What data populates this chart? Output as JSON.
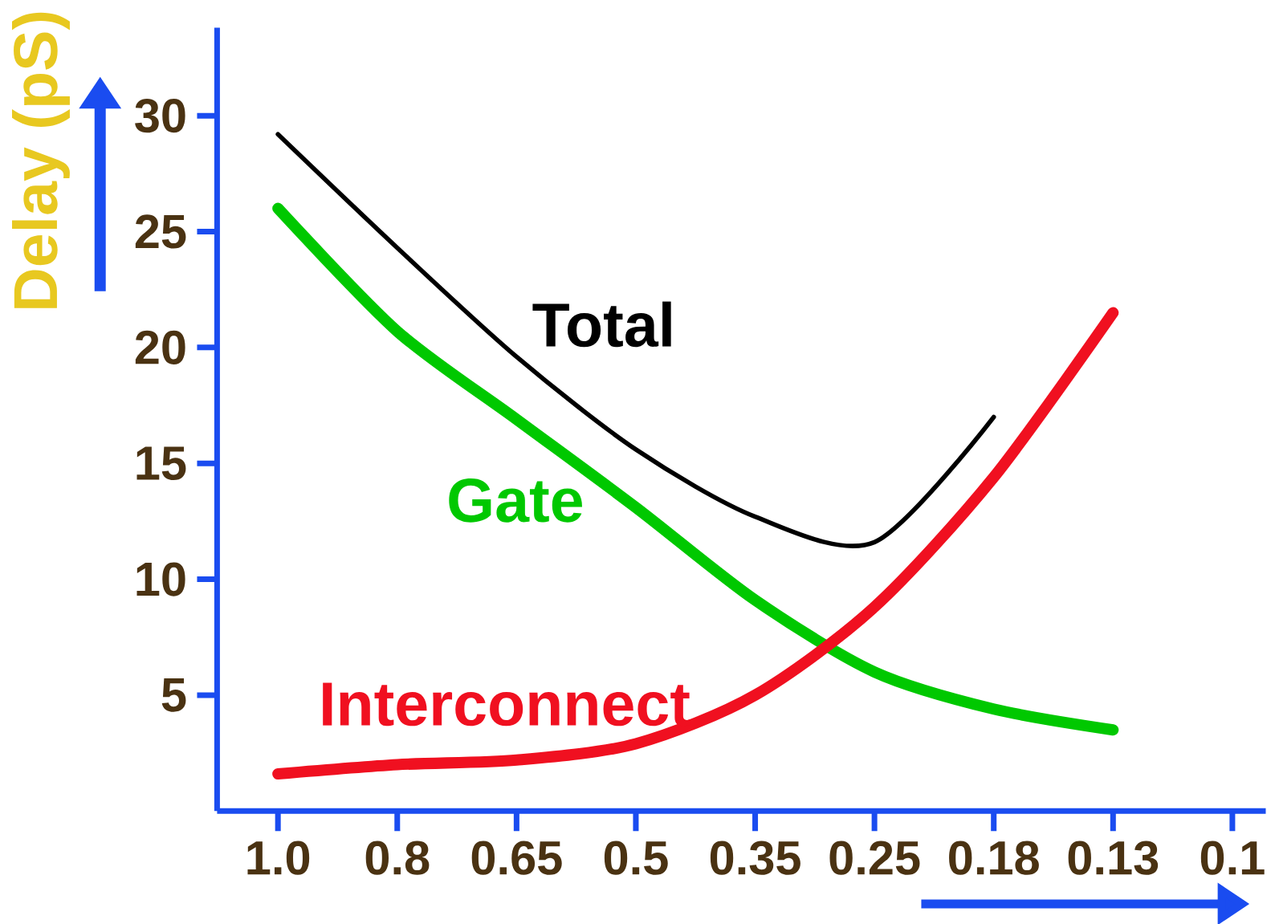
{
  "chart_data": {
    "type": "line",
    "ylabel": "Delay (pS)",
    "categories": [
      "1.0",
      "0.8",
      "0.65",
      "0.5",
      "0.35",
      "0.25",
      "0.18",
      "0.13",
      "0.1"
    ],
    "ylim": [
      0,
      33.8
    ],
    "yticks": [
      5,
      10,
      15,
      20,
      25,
      30
    ],
    "grid": false,
    "legend": false,
    "marker": "none",
    "line_style": "solid",
    "series": [
      {
        "name": "Total",
        "color": "#000000",
        "values": [
          29.2,
          24.3,
          19.6,
          15.6,
          12.7,
          11.6,
          17.0,
          null,
          null
        ]
      },
      {
        "name": "Gate",
        "color": "#00c800",
        "values": [
          26.0,
          20.7,
          16.9,
          13.1,
          9.1,
          6.0,
          4.4,
          3.5,
          null
        ]
      },
      {
        "name": "Interconnect",
        "color": "#f01020",
        "values": [
          1.6,
          2.0,
          2.2,
          2.9,
          5.0,
          8.8,
          14.4,
          21.5,
          null
        ]
      }
    ]
  }
}
